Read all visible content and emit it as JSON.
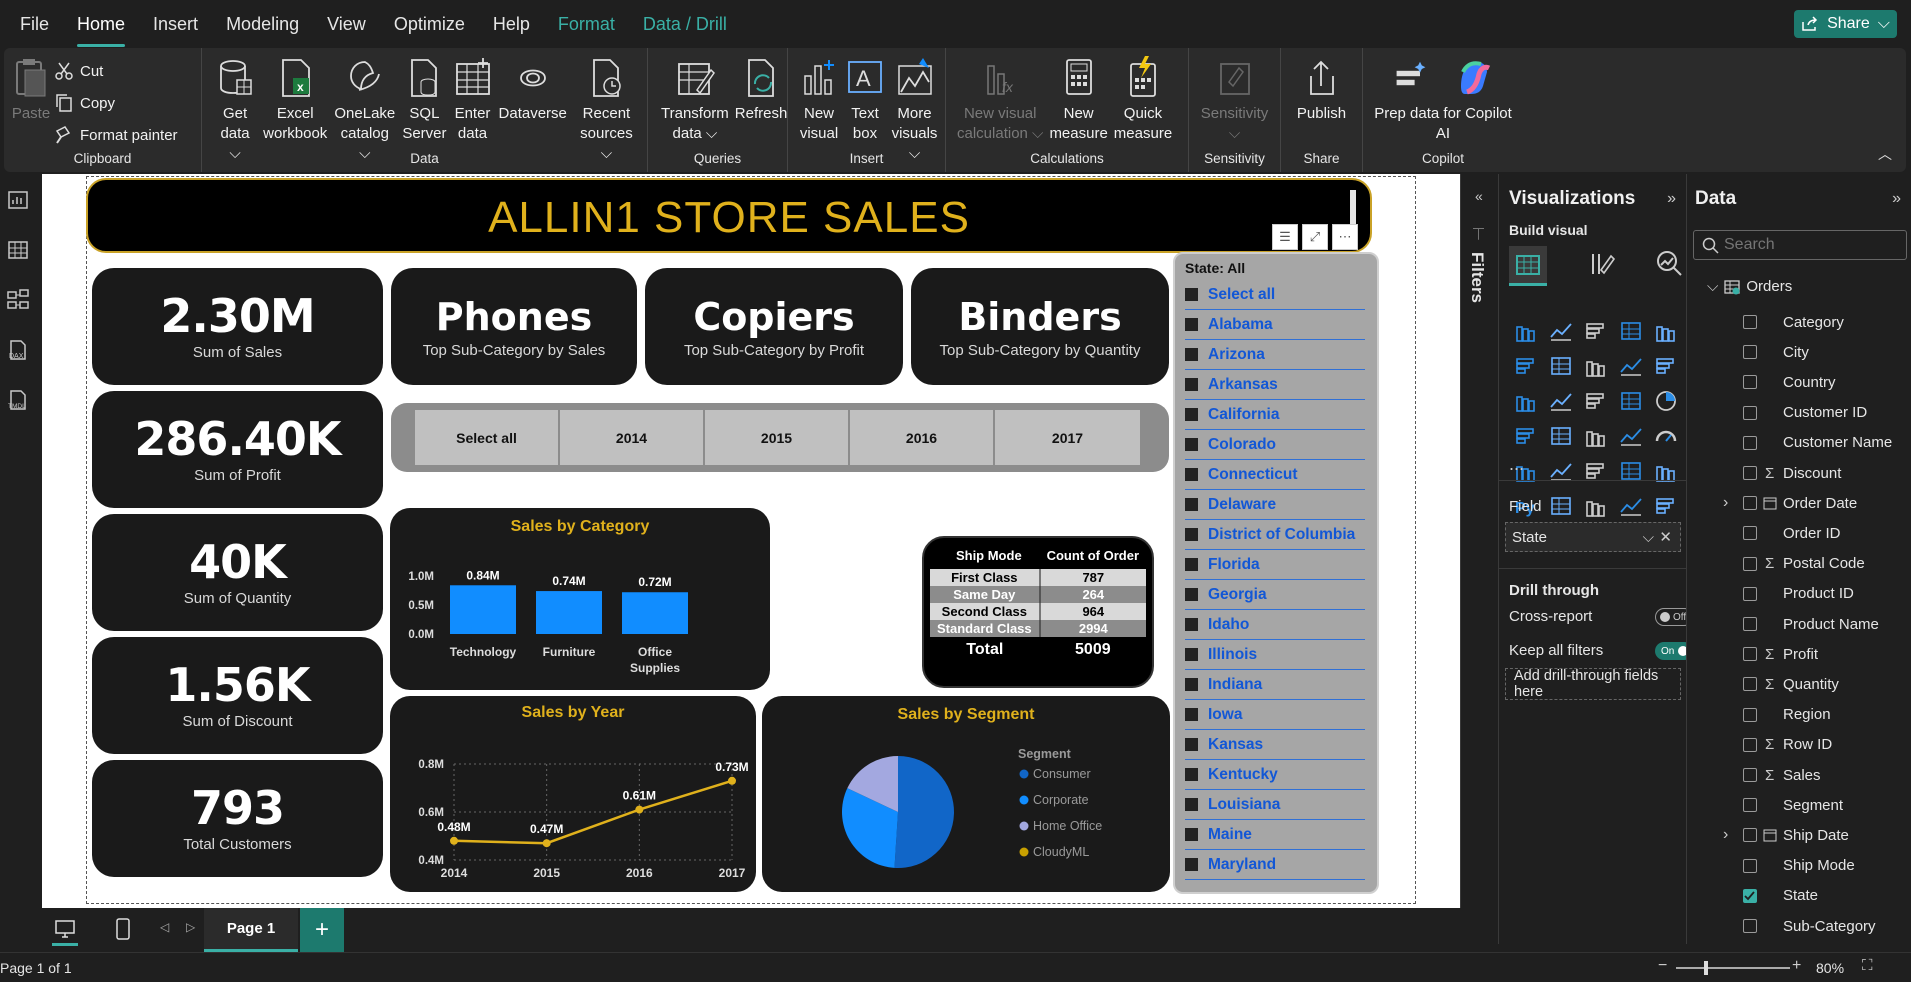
{
  "menu": [
    "File",
    "Home",
    "Insert",
    "Modeling",
    "View",
    "Optimize",
    "Help",
    "Format",
    "Data / Drill"
  ],
  "share_label": "Share",
  "ribbon": {
    "clipboard": {
      "paste": "Paste",
      "cut": "Cut",
      "copy": "Copy",
      "format_painter": "Format painter",
      "label": "Clipboard"
    },
    "data": {
      "get_data_1": "Get",
      "get_data_2": "data",
      "excel_1": "Excel",
      "excel_2": "workbook",
      "onelake_1": "OneLake",
      "onelake_2": "catalog",
      "sql_1": "SQL",
      "sql_2": "Server",
      "enter_1": "Enter",
      "enter_2": "data",
      "dataverse": "Dataverse",
      "recent_1": "Recent",
      "recent_2": "sources",
      "label": "Data"
    },
    "queries": {
      "transform_1": "Transform",
      "transform_2": "data",
      "refresh": "Refresh",
      "label": "Queries"
    },
    "insert": {
      "newvisual_1": "New",
      "newvisual_2": "visual",
      "textbox_1": "Text",
      "textbox_2": "box",
      "more_1": "More",
      "more_2": "visuals",
      "label": "Insert"
    },
    "calculations": {
      "newcalc_1": "New visual",
      "newcalc_2": "calculation",
      "newmeasure_1": "New",
      "newmeasure_2": "measure",
      "quick_1": "Quick",
      "quick_2": "measure",
      "label": "Calculations"
    },
    "sensitivity": {
      "btn": "Sensitivity",
      "label": "Sensitivity"
    },
    "share": {
      "publish": "Publish",
      "label": "Share"
    },
    "copilot": {
      "prep_1": "Prep data for Copilot",
      "prep_2": "AI",
      "label": "Copilot"
    }
  },
  "report": {
    "title": "ALLIN1 STORE SALES",
    "kpis": [
      {
        "value": "2.30M",
        "label": "Sum of Sales"
      },
      {
        "value": "286.40K",
        "label": "Sum of Profit"
      },
      {
        "value": "40K",
        "label": "Sum of Quantity"
      },
      {
        "value": "1.56K",
        "label": "Sum of Discount"
      },
      {
        "value": "793",
        "label": "Total Customers"
      }
    ],
    "subcats": [
      {
        "value": "Phones",
        "label": "Top Sub-Category by Sales"
      },
      {
        "value": "Copiers",
        "label": "Top Sub-Category by Profit"
      },
      {
        "value": "Binders",
        "label": "Top Sub-Category by Quantity"
      }
    ],
    "years": [
      "Select all",
      "2014",
      "2015",
      "2016",
      "2017"
    ],
    "ship_table": {
      "headers": [
        "Ship Mode",
        "Count of Order"
      ],
      "rows": [
        [
          "First Class",
          "787"
        ],
        [
          "Same Day",
          "264"
        ],
        [
          "Second Class",
          "964"
        ],
        [
          "Standard Class",
          "2994"
        ]
      ],
      "total_label": "Total",
      "total_value": "5009"
    },
    "state_slicer": {
      "header": "State: All",
      "items": [
        "Select all",
        "Alabama",
        "Arizona",
        "Arkansas",
        "California",
        "Colorado",
        "Connecticut",
        "Delaware",
        "District of Columbia",
        "Florida",
        "Georgia",
        "Idaho",
        "Illinois",
        "Indiana",
        "Iowa",
        "Kansas",
        "Kentucky",
        "Louisiana",
        "Maine",
        "Maryland"
      ]
    }
  },
  "chart_data": [
    {
      "type": "bar",
      "title": "Sales by Category",
      "categories": [
        "Technology",
        "Furniture",
        "Office Supplies"
      ],
      "values": [
        0.84,
        0.74,
        0.72
      ],
      "data_labels": [
        "0.84M",
        "0.74M",
        "0.72M"
      ],
      "yticks": [
        "0.0M",
        "0.5M",
        "1.0M"
      ],
      "ylim": [
        0,
        1.0
      ],
      "color": "#118dff"
    },
    {
      "type": "line",
      "title": "Sales by Year",
      "x": [
        "2014",
        "2015",
        "2016",
        "2017"
      ],
      "values": [
        0.48,
        0.47,
        0.61,
        0.73
      ],
      "data_labels": [
        "0.48M",
        "0.47M",
        "0.61M",
        "0.73M"
      ],
      "yticks": [
        "0.4M",
        "0.6M",
        "0.8M"
      ],
      "ylim": [
        0.4,
        0.8
      ],
      "grid": true,
      "color": "#e0b11c"
    },
    {
      "type": "pie",
      "title": "Sales by Segment",
      "legend_title": "Segment",
      "series": [
        {
          "name": "Consumer",
          "value": 0.51,
          "color": "#1166c8"
        },
        {
          "name": "Corporate",
          "value": 0.31,
          "color": "#118dff"
        },
        {
          "name": "Home Office",
          "value": 0.18,
          "color": "#a3a8e0"
        },
        {
          "name": "CloudyML",
          "value": 0,
          "color": "#c8a000"
        }
      ],
      "legend_placement": "right"
    }
  ],
  "viz_pane": {
    "title": "Visualizations",
    "build_visual": "Build visual",
    "field_label": "Field",
    "field_value": "State",
    "drill_through": "Drill through",
    "cross_report": "Cross-report",
    "cross_report_state": "Off",
    "keep_filters": "Keep all filters",
    "keep_filters_state": "On",
    "add_drill": "Add drill-through fields here",
    "more": "..."
  },
  "filters_label": "Filters",
  "data_pane": {
    "title": "Data",
    "search_placeholder": "Search",
    "table": "Orders",
    "fields": [
      {
        "name": "Category",
        "sigma": false,
        "expand": false,
        "checked": false
      },
      {
        "name": "City",
        "sigma": false,
        "expand": false,
        "checked": false
      },
      {
        "name": "Country",
        "sigma": false,
        "expand": false,
        "checked": false
      },
      {
        "name": "Customer ID",
        "sigma": false,
        "expand": false,
        "checked": false
      },
      {
        "name": "Customer Name",
        "sigma": false,
        "expand": false,
        "checked": false
      },
      {
        "name": "Discount",
        "sigma": true,
        "expand": false,
        "checked": false
      },
      {
        "name": "Order Date",
        "sigma": false,
        "expand": true,
        "checked": false,
        "date": true
      },
      {
        "name": "Order ID",
        "sigma": false,
        "expand": false,
        "checked": false
      },
      {
        "name": "Postal Code",
        "sigma": true,
        "expand": false,
        "checked": false
      },
      {
        "name": "Product ID",
        "sigma": false,
        "expand": false,
        "checked": false
      },
      {
        "name": "Product Name",
        "sigma": false,
        "expand": false,
        "checked": false
      },
      {
        "name": "Profit",
        "sigma": true,
        "expand": false,
        "checked": false
      },
      {
        "name": "Quantity",
        "sigma": true,
        "expand": false,
        "checked": false
      },
      {
        "name": "Region",
        "sigma": false,
        "expand": false,
        "checked": false
      },
      {
        "name": "Row ID",
        "sigma": true,
        "expand": false,
        "checked": false
      },
      {
        "name": "Sales",
        "sigma": true,
        "expand": false,
        "checked": false
      },
      {
        "name": "Segment",
        "sigma": false,
        "expand": false,
        "checked": false
      },
      {
        "name": "Ship Date",
        "sigma": false,
        "expand": true,
        "checked": false,
        "date": true
      },
      {
        "name": "Ship Mode",
        "sigma": false,
        "expand": false,
        "checked": false
      },
      {
        "name": "State",
        "sigma": false,
        "expand": false,
        "checked": true
      },
      {
        "name": "Sub-Category",
        "sigma": false,
        "expand": false,
        "checked": false
      }
    ]
  },
  "page_tab": "Page 1",
  "status": {
    "page": "Page 1 of 1",
    "zoom": "80%"
  }
}
